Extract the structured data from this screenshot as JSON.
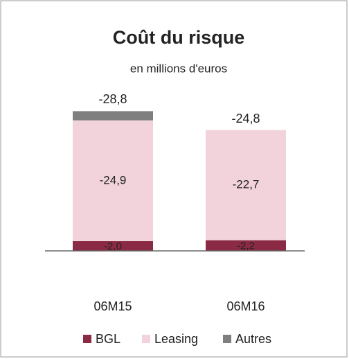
{
  "chart_data": {
    "type": "stacked_bar",
    "title": "Coût du risque",
    "subtitle": "en millions d'euros",
    "categories": [
      "06M15",
      "06M16"
    ],
    "series": [
      {
        "name": "BGL",
        "color": "#8b2a45",
        "values": [
          -2.0,
          -2.2
        ],
        "value_labels": [
          "-2,0",
          "-2,2"
        ]
      },
      {
        "name": "Leasing",
        "color": "#f2d3dc",
        "values": [
          -24.9,
          -22.7
        ],
        "value_labels": [
          "-24,9",
          "-22,7"
        ]
      },
      {
        "name": "Autres",
        "color": "#7f7f7f",
        "values": [
          -1.9,
          0.0
        ]
      }
    ],
    "totals": [
      -28.8,
      -24.8
    ],
    "total_labels": [
      "-28,8",
      "-24,8"
    ],
    "legend": "bottom"
  }
}
